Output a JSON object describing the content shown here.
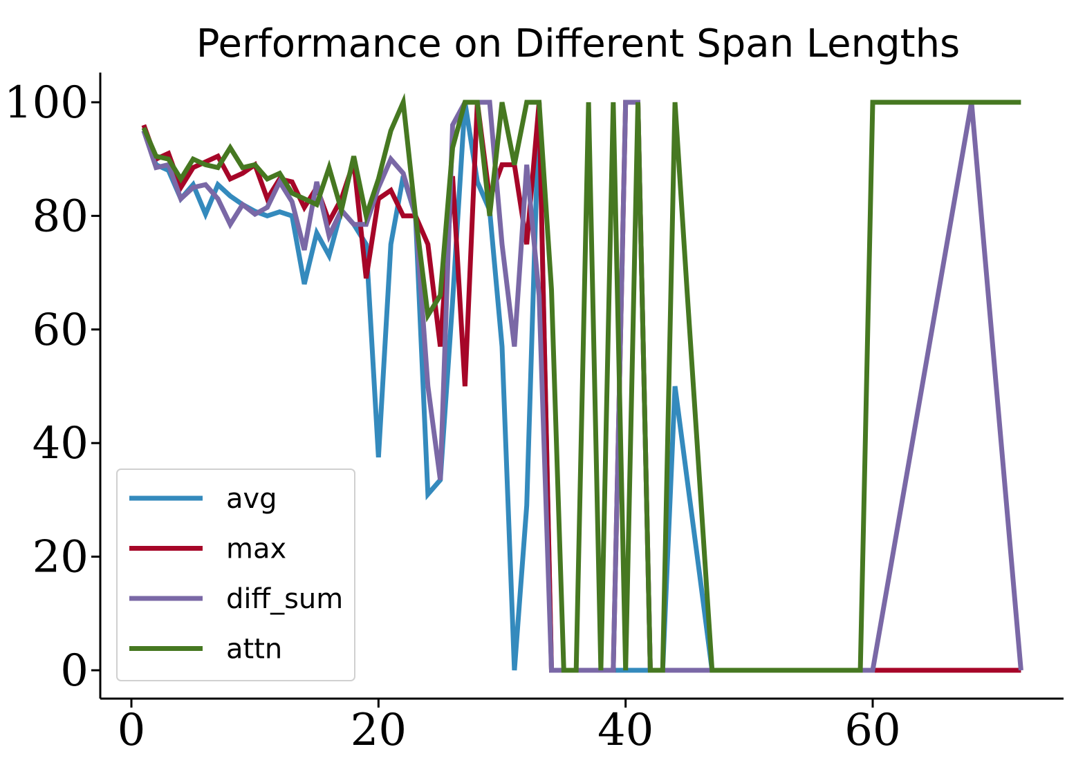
{
  "chart_data": {
    "type": "line",
    "title": "Performance on Different Span Lengths",
    "xlabel": "",
    "ylabel": "",
    "xlim": [
      -2.5,
      75.5
    ],
    "ylim": [
      -5,
      105
    ],
    "x_ticks": [
      0,
      20,
      40,
      60
    ],
    "y_ticks": [
      0,
      20,
      40,
      60,
      80,
      100
    ],
    "x_tick_labels": [
      "0",
      "20",
      "40",
      "60"
    ],
    "y_tick_labels": [
      "0",
      "20",
      "40",
      "60",
      "80",
      "100"
    ],
    "grid": false,
    "legend_position": "lower-left",
    "series": [
      {
        "name": "avg",
        "color": "#348ABD",
        "x": [
          1,
          2,
          3,
          4,
          5,
          6,
          7,
          8,
          9,
          10,
          11,
          12,
          13,
          14,
          15,
          16,
          17,
          18,
          19,
          20,
          21,
          22,
          23,
          24,
          25,
          26,
          27,
          28,
          29,
          30,
          31,
          32,
          33,
          34,
          35,
          36,
          37,
          38,
          39,
          40,
          41,
          42,
          43,
          44,
          45,
          46,
          47,
          48,
          49,
          50,
          51,
          52,
          53,
          54,
          55,
          56,
          57,
          58,
          59,
          60,
          61,
          62,
          63,
          64,
          65,
          66,
          67,
          68,
          69,
          70,
          71,
          72
        ],
        "values": [
          95,
          89,
          88,
          83,
          85.5,
          80.3,
          85.5,
          83.5,
          82,
          80.8,
          80,
          80.7,
          80,
          68,
          77,
          73,
          81,
          78.5,
          75,
          37.5,
          75,
          87,
          80,
          31,
          33.5,
          65,
          100,
          86,
          81,
          57,
          0,
          29,
          100,
          0,
          0,
          0,
          0,
          0,
          0,
          0,
          0,
          0,
          0,
          50,
          33.3,
          16.7,
          0,
          0,
          0,
          0,
          0,
          0,
          0,
          0,
          0,
          0,
          0,
          0,
          0,
          0,
          0,
          0,
          0,
          0,
          0,
          0,
          0,
          0,
          0,
          0,
          0,
          0
        ]
      },
      {
        "name": "max",
        "color": "#A60628",
        "x": [
          1,
          2,
          3,
          4,
          5,
          6,
          7,
          8,
          9,
          10,
          11,
          12,
          13,
          14,
          15,
          16,
          17,
          18,
          19,
          20,
          21,
          22,
          23,
          24,
          25,
          26,
          27,
          28,
          29,
          30,
          31,
          32,
          33,
          34,
          35,
          36,
          37,
          38,
          39,
          40,
          41,
          42,
          43,
          44,
          45,
          46,
          47,
          48,
          49,
          50,
          51,
          52,
          53,
          54,
          55,
          56,
          57,
          58,
          59,
          60,
          61,
          62,
          63,
          64,
          65,
          66,
          67,
          68,
          69,
          70,
          71,
          72
        ],
        "values": [
          96,
          90,
          91,
          85,
          88.5,
          89.5,
          90.5,
          86.5,
          87.5,
          89,
          83,
          86.5,
          86,
          81.5,
          85,
          79,
          83,
          89.5,
          69,
          83,
          84.5,
          80,
          80,
          75,
          57,
          87,
          50,
          100,
          83,
          89,
          89,
          75,
          100,
          0,
          0,
          0,
          0,
          0,
          0,
          100,
          100,
          0,
          0,
          0,
          0,
          0,
          0,
          0,
          0,
          0,
          0,
          0,
          0,
          0,
          0,
          0,
          0,
          0,
          0,
          0,
          0,
          0,
          0,
          0,
          0,
          0,
          0,
          0,
          0,
          0,
          0,
          0
        ]
      },
      {
        "name": "diff_sum",
        "color": "#7A68A6",
        "x": [
          1,
          2,
          3,
          4,
          5,
          6,
          7,
          8,
          9,
          10,
          11,
          12,
          13,
          14,
          15,
          16,
          17,
          18,
          19,
          20,
          21,
          22,
          23,
          24,
          25,
          26,
          27,
          28,
          29,
          30,
          31,
          32,
          33,
          34,
          35,
          36,
          37,
          38,
          39,
          40,
          41,
          42,
          43,
          44,
          45,
          46,
          47,
          48,
          49,
          50,
          51,
          52,
          53,
          54,
          55,
          56,
          57,
          58,
          59,
          60,
          68,
          72
        ],
        "values": [
          95,
          88.5,
          89,
          83,
          85,
          85.5,
          83,
          78.5,
          82,
          80.3,
          81.5,
          86,
          82.5,
          74,
          86,
          76.5,
          81,
          78.5,
          78.5,
          85,
          90,
          87.5,
          80,
          50,
          33.5,
          96,
          100,
          100,
          100,
          75,
          57,
          89,
          66,
          0,
          0,
          0,
          0,
          0,
          0,
          100,
          100,
          0,
          0,
          0,
          0,
          0,
          0,
          0,
          0,
          0,
          0,
          0,
          0,
          0,
          0,
          0,
          0,
          0,
          0,
          0,
          100,
          0
        ]
      },
      {
        "name": "attn",
        "color": "#467821",
        "x": [
          1,
          2,
          3,
          4,
          5,
          6,
          7,
          8,
          9,
          10,
          11,
          12,
          13,
          14,
          15,
          16,
          17,
          18,
          19,
          20,
          21,
          22,
          23,
          24,
          25,
          26,
          27,
          28,
          29,
          30,
          31,
          32,
          33,
          34,
          35,
          36,
          37,
          38,
          39,
          40,
          41,
          42,
          43,
          44,
          45,
          46,
          47,
          48,
          49,
          50,
          51,
          52,
          53,
          54,
          55,
          56,
          57,
          58,
          59,
          60,
          61,
          62,
          63,
          64,
          65,
          66,
          67,
          68,
          69,
          70,
          71,
          72
        ],
        "values": [
          95.5,
          90.5,
          90,
          86.5,
          90,
          89,
          88.5,
          92,
          88.5,
          89,
          86.5,
          87.5,
          84,
          83,
          82,
          88.5,
          81,
          90.5,
          80,
          86.5,
          95,
          100,
          80,
          62.5,
          66,
          92,
          100,
          100,
          80,
          100,
          89,
          100,
          100,
          67,
          0,
          0,
          100,
          0,
          100,
          0,
          100,
          0,
          0,
          100,
          66,
          33,
          0,
          0,
          0,
          0,
          0,
          0,
          0,
          0,
          0,
          0,
          0,
          0,
          0,
          100,
          100,
          100,
          100,
          100,
          100,
          100,
          100,
          100,
          100,
          100,
          100,
          100
        ]
      }
    ]
  }
}
